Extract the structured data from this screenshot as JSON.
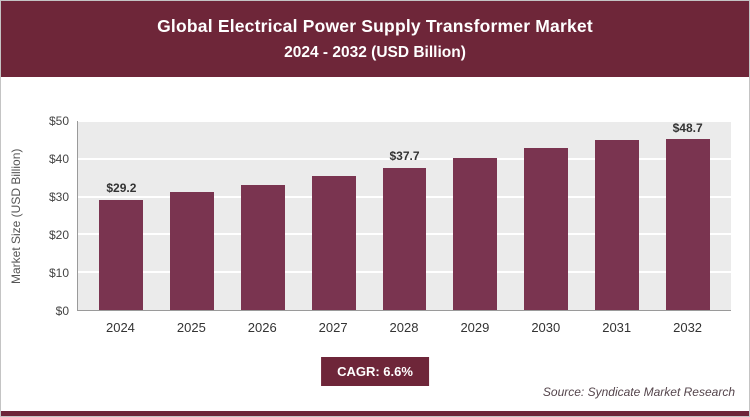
{
  "header": {
    "title_line1": "Global Electrical Power Supply Transformer Market",
    "title_line2": "2024 - 2032 (USD Billion)"
  },
  "chart_data": {
    "type": "bar",
    "title": "Global Electrical Power Supply Transformer Market 2024 - 2032 (USD Billion)",
    "categories": [
      "2024",
      "2025",
      "2026",
      "2027",
      "2028",
      "2029",
      "2030",
      "2031",
      "2032"
    ],
    "values": [
      29.2,
      31.1,
      33.2,
      35.4,
      37.7,
      40.2,
      42.9,
      45.7,
      48.7
    ],
    "data_labels": [
      "$29.2",
      "",
      "",
      "",
      "$37.7",
      "",
      "",
      "",
      "$48.7"
    ],
    "xlabel": "",
    "ylabel": "Market Size (USD Billion)",
    "ylim": [
      0,
      50
    ],
    "y_ticks": [
      "$0",
      "$10",
      "$20",
      "$30",
      "$40",
      "$50"
    ],
    "grid": true,
    "legend": "none",
    "bar_color": "#7a3450"
  },
  "footer": {
    "cagr_label": "CAGR: 6.6%",
    "source": "Source: Syndicate Market Research"
  },
  "colors": {
    "header_bg": "#6e2639",
    "accent": "#6e2639",
    "plot_bg": "#ebebeb"
  }
}
